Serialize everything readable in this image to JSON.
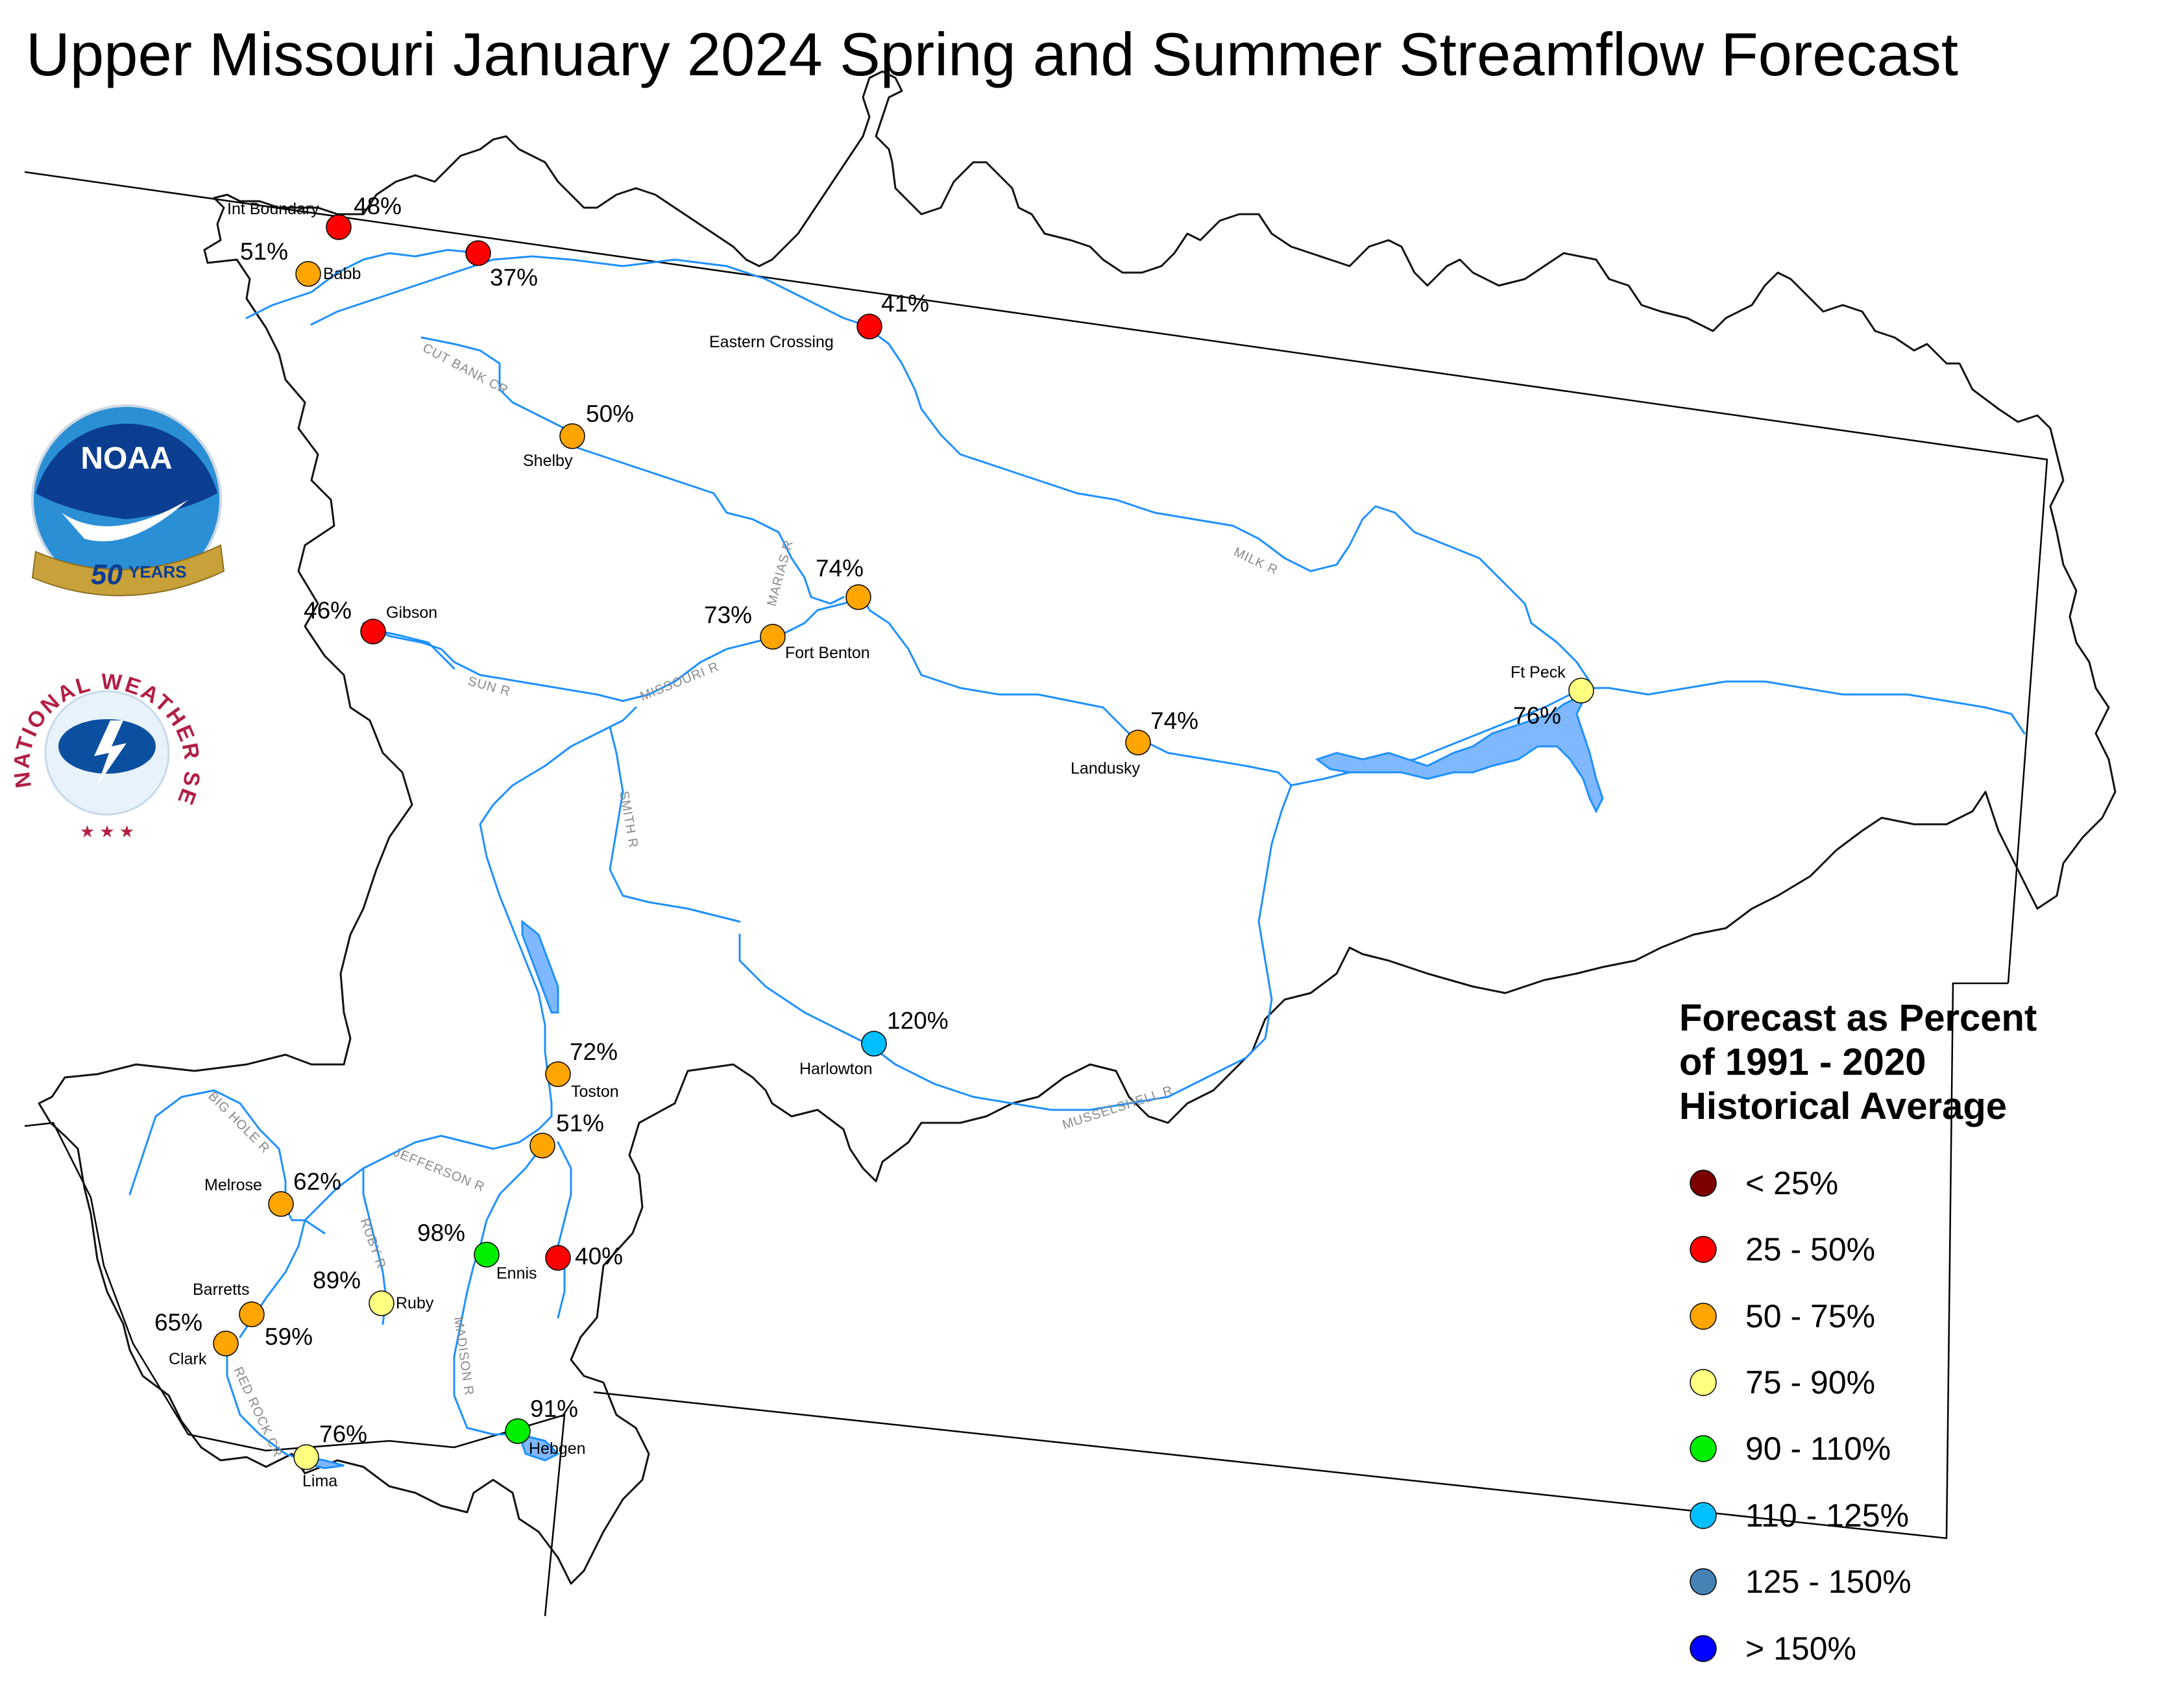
{
  "title": "Upper Missouri January 2024 Spring and Summer Streamflow Forecast",
  "colors": {
    "lt25": "#7b0000",
    "c25_50": "#ff0000",
    "c50_75": "#ffa500",
    "c75_90": "#ffff80",
    "c90_110": "#00ee00",
    "c110_125": "#00bfff",
    "c125_150": "#4682b4",
    "gt150": "#0000ff",
    "river": "#1e90ff",
    "lake": "#7fb8ff",
    "boundary": "#000000"
  },
  "logos": {
    "noaa": {
      "text": "NOAA",
      "years_number": "50",
      "years_word": "YEARS"
    },
    "nws": {
      "text": "NATIONAL WEATHER SERVICE"
    }
  },
  "sites": [
    {
      "name": "Int Boundary",
      "pct": "48%",
      "cls": "c25_50"
    },
    {
      "name": "",
      "pct": "37%",
      "cls": "c25_50"
    },
    {
      "name": "Babb",
      "pct": "51%",
      "cls": "c50_75"
    },
    {
      "name": "Eastern Crossing",
      "pct": "41%",
      "cls": "c25_50"
    },
    {
      "name": "Shelby",
      "pct": "50%",
      "cls": "c50_75"
    },
    {
      "name": "",
      "pct": "74%",
      "cls": "c50_75"
    },
    {
      "name": "Fort Benton",
      "pct": "73%",
      "cls": "c50_75"
    },
    {
      "name": "Gibson",
      "pct": "46%",
      "cls": "c25_50"
    },
    {
      "name": "Landusky",
      "pct": "74%",
      "cls": "c50_75"
    },
    {
      "name": "Ft Peck",
      "pct": "76%",
      "cls": "c75_90"
    },
    {
      "name": "Harlowton",
      "pct": "120%",
      "cls": "c110_125"
    },
    {
      "name": "Toston",
      "pct": "72%",
      "cls": "c50_75"
    },
    {
      "name": "",
      "pct": "51%",
      "cls": "c50_75"
    },
    {
      "name": "Melrose",
      "pct": "62%",
      "cls": "c50_75"
    },
    {
      "name": "Ennis",
      "pct": "98%",
      "cls": "c90_110"
    },
    {
      "name": "",
      "pct": "40%",
      "cls": "c25_50"
    },
    {
      "name": "Ruby",
      "pct": "89%",
      "cls": "c75_90"
    },
    {
      "name": "Barretts",
      "pct": "59%",
      "cls": "c50_75"
    },
    {
      "name": "Clark",
      "pct": "65%",
      "cls": "c50_75"
    },
    {
      "name": "Lima",
      "pct": "76%",
      "cls": "c75_90"
    },
    {
      "name": "Hebgen",
      "pct": "91%",
      "cls": "c90_110"
    }
  ],
  "river_labels": [
    "CUT BANK CR",
    "MARIAS R",
    "MILK R",
    "SUN R",
    "MISSOURI R",
    "SMITH R",
    "MUSSELSHELL R",
    "BIG HOLE R",
    "JEFFERSON R",
    "RUBY R",
    "MADISON R",
    "RED ROCK CR"
  ],
  "legend": {
    "title_lines": [
      "Forecast as Percent",
      "of 1991 - 2020",
      "Historical Average"
    ],
    "items": [
      {
        "label": "< 25%",
        "cls": "lt25"
      },
      {
        "label": "25 - 50%",
        "cls": "c25_50"
      },
      {
        "label": "50 - 75%",
        "cls": "c50_75"
      },
      {
        "label": "75 - 90%",
        "cls": "c75_90"
      },
      {
        "label": "90 - 110%",
        "cls": "c90_110"
      },
      {
        "label": "110 - 125%",
        "cls": "c110_125"
      },
      {
        "label": "125 - 150%",
        "cls": "c125_150"
      },
      {
        "label": "> 150%",
        "cls": "gt150"
      }
    ]
  }
}
